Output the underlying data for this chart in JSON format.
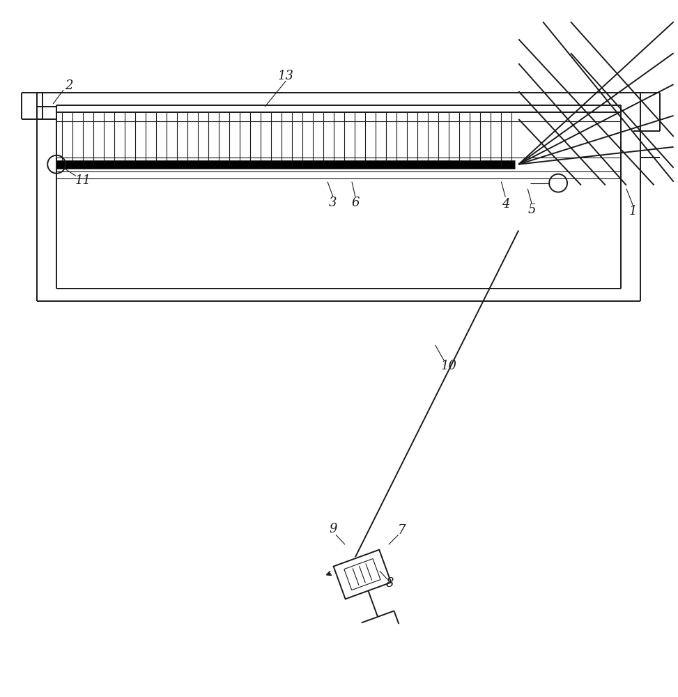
{
  "bg_color": "#ffffff",
  "line_color": "#1a1a1a",
  "fig_width": 9.73,
  "fig_height": 10.0,
  "lw_thin": 0.8,
  "lw_med": 1.4,
  "lw_thick": 2.2
}
